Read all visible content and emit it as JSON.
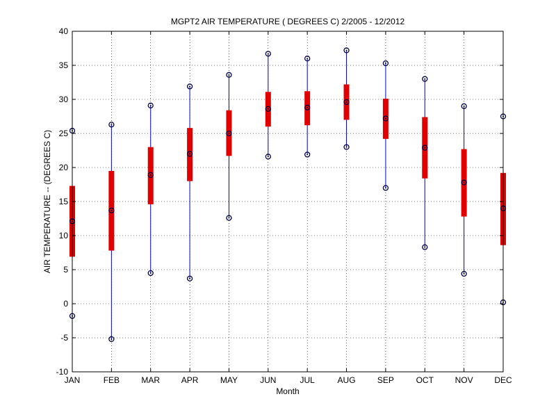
{
  "chart_data": {
    "type": "box",
    "title": "MGPT2  AIR TEMPERATURE ( DEGREES C) 2/2005 - 12/2012",
    "xlabel": "Month",
    "ylabel": "AIR TEMPERATURE -- (DEGREES C)",
    "ylim": [
      -10,
      40
    ],
    "yticks": [
      -10,
      -5,
      0,
      5,
      10,
      15,
      20,
      25,
      30,
      35,
      40
    ],
    "grid": true,
    "categories": [
      "JAN",
      "FEB",
      "MAR",
      "APR",
      "MAY",
      "JUN",
      "JUL",
      "AUG",
      "SEP",
      "OCT",
      "NOV",
      "DEC"
    ],
    "min": [
      -1.8,
      -5.2,
      4.5,
      3.7,
      12.6,
      21.6,
      21.9,
      23.0,
      17.0,
      8.3,
      4.4,
      0.2
    ],
    "q1": [
      6.9,
      7.8,
      14.6,
      18.0,
      21.7,
      26.0,
      26.2,
      27.0,
      24.2,
      18.4,
      12.8,
      8.6
    ],
    "median": [
      12.1,
      13.7,
      18.9,
      22.0,
      25.0,
      28.6,
      28.8,
      29.6,
      27.2,
      22.9,
      17.8,
      14.0
    ],
    "q3": [
      17.3,
      19.5,
      23.0,
      25.8,
      28.4,
      31.1,
      31.2,
      32.2,
      30.1,
      27.4,
      22.7,
      19.2
    ],
    "max": [
      25.4,
      26.3,
      29.1,
      31.9,
      33.6,
      36.7,
      36.0,
      37.2,
      35.3,
      33.0,
      29.0,
      27.5
    ],
    "colors": {
      "whisker": "#0000cc",
      "box": "#e00000",
      "marker": "#000044",
      "grid": "#000000"
    }
  }
}
